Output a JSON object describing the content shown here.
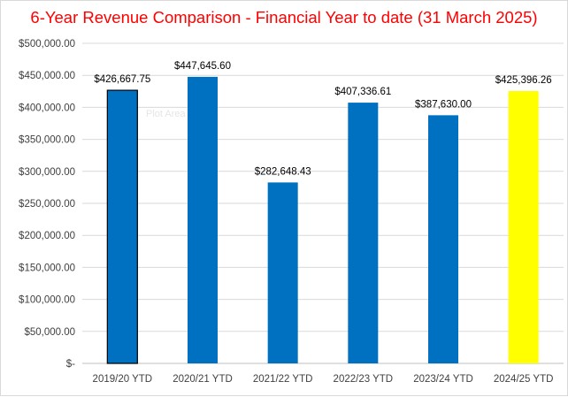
{
  "chart_data": {
    "type": "bar",
    "title": "6-Year Revenue Comparison - Financial Year to date (31 March 2025)",
    "categories": [
      "2019/20 YTD",
      "2020/21 YTD",
      "2021/22 YTD",
      "2022/23 YTD",
      "2023/24 YTD",
      "2024/25 YTD"
    ],
    "values": [
      426667.75,
      447645.6,
      282648.43,
      407336.61,
      387630.0,
      425396.26
    ],
    "data_labels": [
      "$426,667.75",
      "$447,645.60",
      "$282,648.43",
      "$407,336.61",
      "$387,630.00",
      "$425,396.26"
    ],
    "bar_colors": [
      "#0070c0",
      "#0070c0",
      "#0070c0",
      "#0070c0",
      "#0070c0",
      "#ffff00"
    ],
    "highlighted_bar_outline": "#000000",
    "ylim": [
      0,
      500000
    ],
    "yticks": [
      0,
      50000,
      100000,
      150000,
      200000,
      250000,
      300000,
      350000,
      400000,
      450000,
      500000
    ],
    "ytick_labels": [
      "$-",
      "$50,000.00",
      "$100,000.00",
      "$150,000.00",
      "$200,000.00",
      "$250,000.00",
      "$300,000.00",
      "$350,000.00",
      "$400,000.00",
      "$450,000.00",
      "$500,000.00"
    ],
    "grid": true,
    "legend": "none",
    "xlabel": "",
    "ylabel": ""
  },
  "tooltip": {
    "text": "Plot Area"
  },
  "colors": {
    "title": "#ff0000",
    "grid": "#d9d9d9",
    "axis_text": "#404040"
  }
}
